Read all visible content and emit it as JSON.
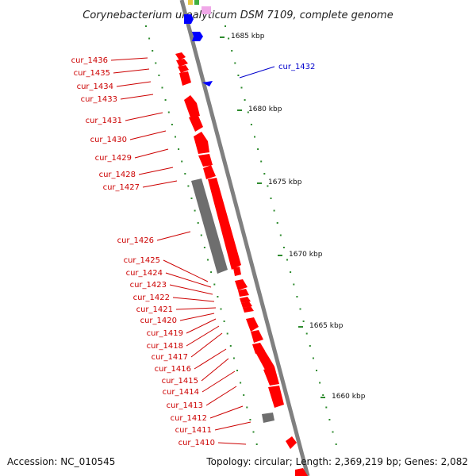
{
  "title": "Corynebacterium urealyticum DSM 7109, complete genome",
  "footer": {
    "accession": "Accession: NC_010545",
    "topology": "Topology: circular; Length: 2,369,219 bp; Genes: 2,082"
  },
  "scale_ticks": [
    "1685 kbp",
    "1680 kbp",
    "1675 kbp",
    "1670 kbp",
    "1665 kbp",
    "1660 kbp"
  ],
  "gene_labels": [
    "cur_1436",
    "cur_1435",
    "cur_1434",
    "cur_1433",
    "cur_1431",
    "cur_1430",
    "cur_1429",
    "cur_1428",
    "cur_1427",
    "cur_1426",
    "cur_1425",
    "cur_1424",
    "cur_1423",
    "cur_1422",
    "cur_1421",
    "cur_1420",
    "cur_1419",
    "cur_1418",
    "cur_1417",
    "cur_1416",
    "cur_1415",
    "cur_1414",
    "cur_1413",
    "cur_1412",
    "cur_1411",
    "cur_1410"
  ],
  "reverse_label": "cur_1432",
  "colors": {
    "gene_red": "#ff0000",
    "gene_blue": "#0000ff",
    "gene_gray": "#6e6e6e",
    "backbone": "#808080",
    "dots_green": "#2e8b2e",
    "label_red": "#cc0000",
    "label_blue": "#0000cc"
  }
}
